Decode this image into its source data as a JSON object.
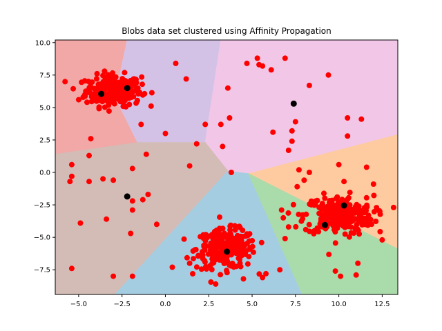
{
  "chart_data": {
    "type": "scatter",
    "title": "Blobs data set clustered using Affinity Propagation",
    "xlabel": "",
    "ylabel": "",
    "xlim": [
      -6.35,
      13.4
    ],
    "ylim": [
      -9.4,
      10.2
    ],
    "x_ticks": [
      -5.0,
      -2.5,
      0.0,
      2.5,
      5.0,
      7.5,
      10.0,
      12.5
    ],
    "x_tick_labels": [
      "−5.0",
      "−2.5",
      "0.0",
      "2.5",
      "5.0",
      "7.5",
      "10.0",
      "12.5"
    ],
    "y_ticks": [
      -7.5,
      -5.0,
      -2.5,
      0.0,
      2.5,
      5.0,
      7.5,
      10.0
    ],
    "y_tick_labels": [
      "−7.5",
      "−5.0",
      "−2.5",
      "0.0",
      "2.5",
      "5.0",
      "7.5",
      "10.0"
    ],
    "grid": false,
    "legend": "none",
    "point_color": "#ff0000",
    "exemplar_color": "#000000",
    "exemplars": [
      {
        "x": -3.7,
        "y": 6.05
      },
      {
        "x": -2.2,
        "y": 6.5
      },
      {
        "x": 7.4,
        "y": 5.3
      },
      {
        "x": -2.2,
        "y": -1.85
      },
      {
        "x": 3.55,
        "y": -6.1
      },
      {
        "x": 10.3,
        "y": -2.55
      },
      {
        "x": 9.2,
        "y": -4.05
      }
    ],
    "regions": [
      {
        "color": "#f1a8a6",
        "polygon": [
          [
            -6.35,
            10.2
          ],
          [
            -2.2,
            10.2
          ],
          [
            -2.9,
            5.8
          ],
          [
            -1.6,
            2.3
          ],
          [
            -6.35,
            1.4
          ]
        ]
      },
      {
        "color": "#d3c2e6",
        "polygon": [
          [
            -2.2,
            10.2
          ],
          [
            3.2,
            10.2
          ],
          [
            2.3,
            2.3
          ],
          [
            -1.6,
            2.3
          ],
          [
            -2.9,
            5.8
          ]
        ]
      },
      {
        "color": "#f2c6e7",
        "polygon": [
          [
            3.2,
            10.2
          ],
          [
            13.4,
            10.2
          ],
          [
            13.4,
            2.9
          ],
          [
            4.8,
            -0.1
          ],
          [
            3.6,
            0.1
          ],
          [
            2.3,
            2.3
          ]
        ]
      },
      {
        "color": "#fecba1",
        "polygon": [
          [
            13.4,
            2.9
          ],
          [
            13.4,
            -5.9
          ],
          [
            4.8,
            -0.1
          ]
        ]
      },
      {
        "color": "#d3bcb6",
        "polygon": [
          [
            -6.35,
            1.4
          ],
          [
            -1.6,
            2.3
          ],
          [
            2.3,
            2.3
          ],
          [
            3.6,
            0.1
          ],
          [
            -2.9,
            -9.4
          ],
          [
            -6.35,
            -9.4
          ]
        ]
      },
      {
        "color": "#a5cde2",
        "polygon": [
          [
            -2.9,
            -9.4
          ],
          [
            3.6,
            0.1
          ],
          [
            4.8,
            -0.1
          ],
          [
            7.9,
            -9.4
          ]
        ]
      },
      {
        "color": "#aadbab",
        "polygon": [
          [
            4.8,
            -0.1
          ],
          [
            13.4,
            -5.9
          ],
          [
            13.4,
            -9.4
          ],
          [
            7.9,
            -9.4
          ]
        ]
      }
    ],
    "blobs": [
      {
        "cx": -3.0,
        "cy": 6.3,
        "sx": 0.8,
        "sy": 0.6,
        "n": 260
      },
      {
        "cx": 3.5,
        "cy": -5.9,
        "sx": 0.85,
        "sy": 0.75,
        "n": 260
      },
      {
        "cx": 10.0,
        "cy": -3.3,
        "sx": 1.0,
        "sy": 0.75,
        "n": 260
      }
    ],
    "points": [
      {
        "x": 0.6,
        "y": 8.4
      },
      {
        "x": 1.2,
        "y": 7.2
      },
      {
        "x": 4.7,
        "y": 8.4
      },
      {
        "x": 5.3,
        "y": 8.8
      },
      {
        "x": 5.4,
        "y": 8.3
      },
      {
        "x": 5.6,
        "y": 8.2
      },
      {
        "x": 6.1,
        "y": 7.9
      },
      {
        "x": 6.9,
        "y": 8.8
      },
      {
        "x": 9.4,
        "y": 7.5
      },
      {
        "x": 3.6,
        "y": 6.5
      },
      {
        "x": 8.3,
        "y": 6.7
      },
      {
        "x": 3.7,
        "y": 4.2
      },
      {
        "x": 2.3,
        "y": 3.7
      },
      {
        "x": 3.2,
        "y": 3.7
      },
      {
        "x": 6.2,
        "y": 3.1
      },
      {
        "x": 7.5,
        "y": 3.9
      },
      {
        "x": 7.3,
        "y": 3.2
      },
      {
        "x": 7.3,
        "y": 2.4
      },
      {
        "x": 7.1,
        "y": 1.7
      },
      {
        "x": 10.5,
        "y": 4.2
      },
      {
        "x": 11.3,
        "y": 4.1
      },
      {
        "x": 10.5,
        "y": 2.8
      },
      {
        "x": 3.3,
        "y": 2.0
      },
      {
        "x": 1.8,
        "y": 2.2
      },
      {
        "x": 0.0,
        "y": 3.0
      },
      {
        "x": -1.4,
        "y": 3.7
      },
      {
        "x": -4.3,
        "y": 2.6
      },
      {
        "x": -5.0,
        "y": 5.6
      },
      {
        "x": -1.1,
        "y": 1.4
      },
      {
        "x": -4.4,
        "y": 1.3
      },
      {
        "x": -5.4,
        "y": 0.6
      },
      {
        "x": -1.9,
        "y": 0.3
      },
      {
        "x": -3.6,
        "y": -0.5
      },
      {
        "x": -4.4,
        "y": -0.7
      },
      {
        "x": -3.0,
        "y": -0.6
      },
      {
        "x": -5.5,
        "y": -0.7
      },
      {
        "x": -5.4,
        "y": -0.3
      },
      {
        "x": -1.9,
        "y": -2.2
      },
      {
        "x": -1.0,
        "y": -1.7
      },
      {
        "x": -1.3,
        "y": -2.1
      },
      {
        "x": -1.9,
        "y": -2.9
      },
      {
        "x": -3.4,
        "y": -3.6
      },
      {
        "x": -4.9,
        "y": -3.9
      },
      {
        "x": -0.5,
        "y": -4.0
      },
      {
        "x": -2.0,
        "y": -4.7
      },
      {
        "x": -5.4,
        "y": -7.4
      },
      {
        "x": -3.0,
        "y": -8.0
      },
      {
        "x": -1.9,
        "y": -8.0
      },
      {
        "x": 0.4,
        "y": -7.3
      },
      {
        "x": 1.4,
        "y": 0.5
      },
      {
        "x": 3.8,
        "y": 0.0
      },
      {
        "x": 7.7,
        "y": 0.2
      },
      {
        "x": 8.0,
        "y": -0.6
      },
      {
        "x": 8.3,
        "y": 0.0
      },
      {
        "x": 10.0,
        "y": 0.6
      },
      {
        "x": 11.6,
        "y": 0.4
      },
      {
        "x": 10.3,
        "y": -0.7
      },
      {
        "x": 7.6,
        "y": -1.1
      },
      {
        "x": 12.0,
        "y": -0.9
      },
      {
        "x": 6.7,
        "y": -2.9
      },
      {
        "x": 6.8,
        "y": -3.5
      },
      {
        "x": 7.1,
        "y": -4.2
      },
      {
        "x": 6.9,
        "y": -5.1
      },
      {
        "x": 12.5,
        "y": -5.2
      },
      {
        "x": 9.8,
        "y": -7.6
      },
      {
        "x": 10.1,
        "y": -8.0
      },
      {
        "x": 11.0,
        "y": -7.9
      },
      {
        "x": 11.1,
        "y": -7.0
      },
      {
        "x": 1.9,
        "y": -6.4
      },
      {
        "x": 1.4,
        "y": -7.0
      },
      {
        "x": 6.6,
        "y": -7.5
      },
      {
        "x": 5.8,
        "y": -7.8
      },
      {
        "x": 2.9,
        "y": -8.6
      },
      {
        "x": 4.5,
        "y": -8.2
      },
      {
        "x": 5.6,
        "y": -8.1
      }
    ]
  }
}
